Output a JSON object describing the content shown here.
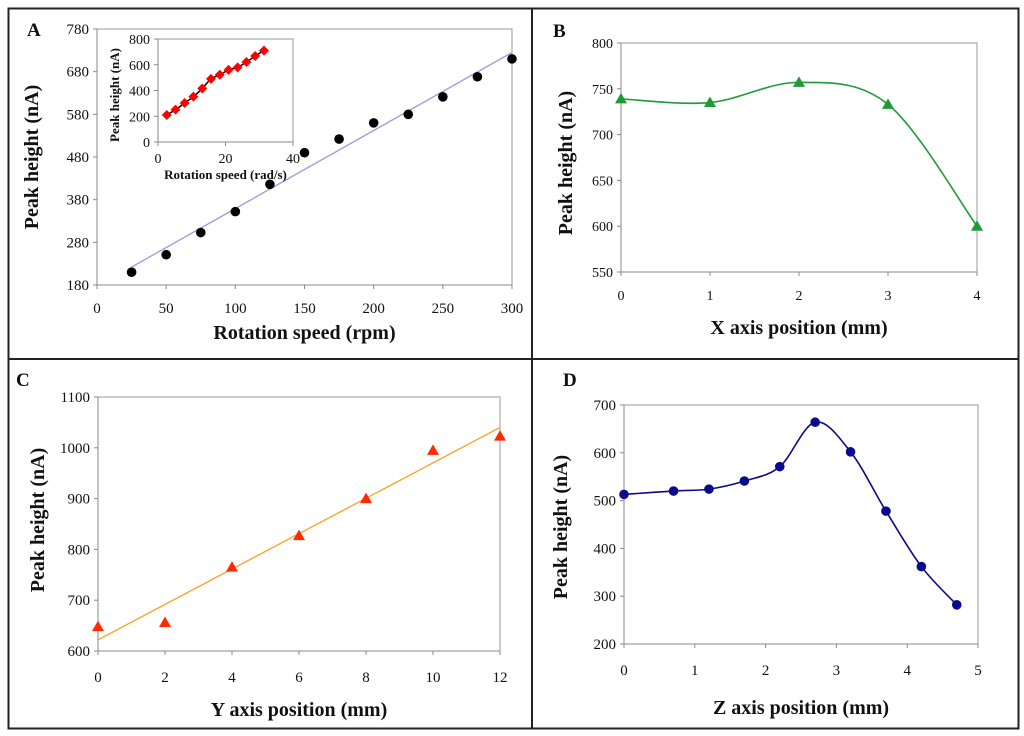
{
  "chart_data": [
    {
      "panel": "A",
      "type": "scatter",
      "xlabel": "Rotation speed (rpm)",
      "ylabel": "Peak height (nA)",
      "xlim": [
        0,
        300
      ],
      "ylim": [
        180,
        780
      ],
      "xticks": [
        0,
        50,
        100,
        150,
        200,
        250,
        300
      ],
      "yticks": [
        180,
        280,
        380,
        480,
        580,
        680,
        780
      ],
      "marker_color": "#000000",
      "trendline_color": "#9999dd",
      "x": [
        25,
        50,
        75,
        100,
        125,
        150,
        175,
        200,
        225,
        250,
        275,
        300
      ],
      "y": [
        210,
        251,
        303,
        352,
        416,
        490,
        522,
        560,
        580,
        621,
        668,
        710
      ],
      "trendline": {
        "x": [
          25,
          300
        ],
        "y": [
          222,
          725
        ]
      },
      "inset": {
        "type": "scatter",
        "xlabel": "Rotation speed (rad/s)",
        "ylabel": "Peak height (nA)",
        "xlim": [
          0,
          40
        ],
        "ylim": [
          0,
          800
        ],
        "xticks": [
          0,
          20,
          40
        ],
        "yticks": [
          0,
          200,
          400,
          600,
          800
        ],
        "marker_color": "#ff0000",
        "line_color": "#000000",
        "x": [
          2.6,
          5.2,
          7.9,
          10.5,
          13.1,
          15.7,
          18.3,
          20.9,
          23.6,
          26.2,
          28.8,
          31.4
        ],
        "y": [
          210,
          251,
          303,
          352,
          416,
          490,
          522,
          560,
          580,
          621,
          668,
          710
        ]
      }
    },
    {
      "panel": "B",
      "type": "line",
      "xlabel": "X axis position (mm)",
      "ylabel": "Peak height (nA)",
      "xlim": [
        0,
        4
      ],
      "ylim": [
        550,
        800
      ],
      "xticks": [
        0,
        1,
        2,
        3,
        4
      ],
      "yticks": [
        550,
        600,
        650,
        700,
        750,
        800
      ],
      "color": "#1e9a3a",
      "marker": "triangle",
      "x": [
        0,
        1,
        2,
        3,
        4
      ],
      "y": [
        739,
        735,
        757,
        733,
        600
      ]
    },
    {
      "panel": "C",
      "type": "scatter",
      "xlabel": "Y axis position (mm)",
      "ylabel": "Peak height (nA)",
      "xlim": [
        0,
        12
      ],
      "ylim": [
        600,
        1100
      ],
      "xticks": [
        0,
        2,
        4,
        6,
        8,
        10,
        12
      ],
      "yticks": [
        600,
        700,
        800,
        900,
        1000,
        1100
      ],
      "marker_color": "#ff2a00",
      "trendline_color": "#ffa020",
      "marker": "triangle",
      "x": [
        0,
        2,
        4,
        6,
        8,
        10,
        12
      ],
      "y": [
        648,
        656,
        765,
        827,
        900,
        995,
        1023
      ],
      "trendline": {
        "x": [
          0,
          12
        ],
        "y": [
          622,
          1040
        ]
      }
    },
    {
      "panel": "D",
      "type": "line",
      "xlabel": "Z axis position (mm)",
      "ylabel": "Peak height (nA)",
      "xlim": [
        0,
        5
      ],
      "ylim": [
        200,
        700
      ],
      "xticks": [
        0,
        1,
        2,
        3,
        4,
        5
      ],
      "yticks": [
        200,
        300,
        400,
        500,
        600,
        700
      ],
      "color": "#0a0a8c",
      "marker": "circle",
      "x": [
        0,
        0.7,
        1.2,
        1.7,
        2.2,
        2.7,
        3.2,
        3.7,
        4.2,
        4.7
      ],
      "y": [
        513,
        520,
        524,
        541,
        571,
        664,
        602,
        478,
        362,
        282
      ]
    }
  ]
}
